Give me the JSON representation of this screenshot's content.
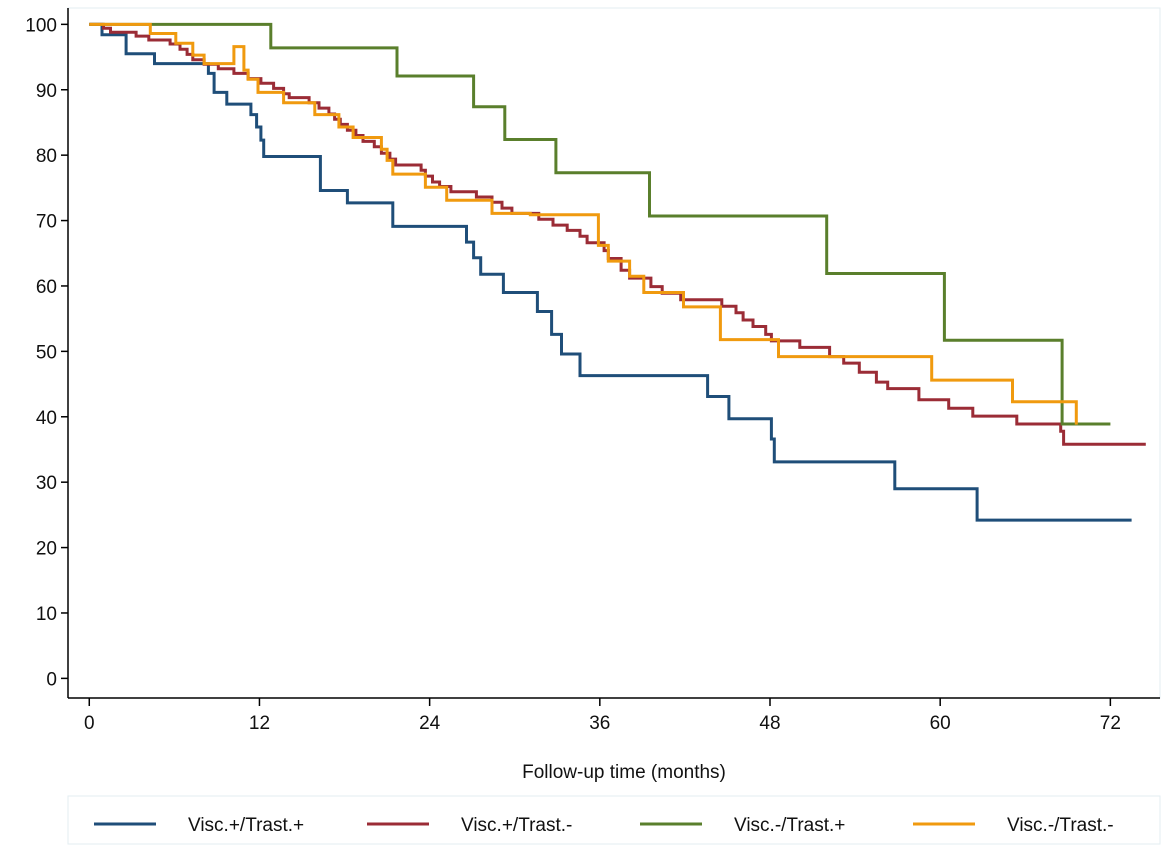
{
  "chart_data": {
    "type": "line",
    "step": true,
    "title": "",
    "xlabel": "Follow-up time (months)",
    "ylabel": "",
    "xlim": [
      -1.5,
      75.5
    ],
    "ylim": [
      -3,
      102.5
    ],
    "xticks": [
      0,
      12,
      24,
      36,
      48,
      60,
      72
    ],
    "xtick_labels": [
      "0",
      "12",
      "24",
      "36",
      "48",
      "60",
      "72"
    ],
    "yticks": [
      0,
      10,
      20,
      30,
      40,
      50,
      60,
      70,
      80,
      90,
      100
    ],
    "ytick_labels": [
      "0",
      "10",
      "20",
      "30",
      "40",
      "50",
      "60",
      "70",
      "80",
      "90",
      "100"
    ],
    "grid": false,
    "legend_position": "bottom",
    "series": [
      {
        "name": "Visc.+/Trast.+",
        "color": "#1f4e79",
        "points": [
          [
            0,
            100
          ],
          [
            0.9,
            100
          ],
          [
            0.9,
            98.4
          ],
          [
            2.6,
            98.4
          ],
          [
            2.6,
            95.5
          ],
          [
            4.6,
            95.5
          ],
          [
            4.6,
            94
          ],
          [
            8.4,
            94
          ],
          [
            8.4,
            92.5
          ],
          [
            8.8,
            92.5
          ],
          [
            8.8,
            89.6
          ],
          [
            9.7,
            89.6
          ],
          [
            9.7,
            87.8
          ],
          [
            11.4,
            87.8
          ],
          [
            11.4,
            86.2
          ],
          [
            11.8,
            86.2
          ],
          [
            11.8,
            84.3
          ],
          [
            12.1,
            84.3
          ],
          [
            12.1,
            82.3
          ],
          [
            12.3,
            82.3
          ],
          [
            12.3,
            79.8
          ],
          [
            16.3,
            79.8
          ],
          [
            16.3,
            74.6
          ],
          [
            18.2,
            74.6
          ],
          [
            18.2,
            72.7
          ],
          [
            21.4,
            72.7
          ],
          [
            21.4,
            69.1
          ],
          [
            26.6,
            69.1
          ],
          [
            26.6,
            66.7
          ],
          [
            27.1,
            66.7
          ],
          [
            27.1,
            64.3
          ],
          [
            27.6,
            64.3
          ],
          [
            27.6,
            61.8
          ],
          [
            29.2,
            61.8
          ],
          [
            29.2,
            59
          ],
          [
            31.6,
            59
          ],
          [
            31.6,
            56.1
          ],
          [
            32.6,
            56.1
          ],
          [
            32.6,
            52.6
          ],
          [
            33.3,
            52.6
          ],
          [
            33.3,
            49.6
          ],
          [
            34.6,
            49.6
          ],
          [
            34.6,
            46.3
          ],
          [
            43.6,
            46.3
          ],
          [
            43.6,
            43.1
          ],
          [
            45.1,
            43.1
          ],
          [
            45.1,
            39.7
          ],
          [
            48.1,
            39.7
          ],
          [
            48.1,
            36.6
          ],
          [
            48.3,
            36.6
          ],
          [
            48.3,
            33.1
          ],
          [
            56.8,
            33.1
          ],
          [
            56.8,
            29
          ],
          [
            62.6,
            29
          ],
          [
            62.6,
            24.2
          ],
          [
            73.5,
            24.2
          ]
        ]
      },
      {
        "name": "Visc.+/Trast.-",
        "color": "#9b2c36",
        "points": [
          [
            0,
            100
          ],
          [
            1,
            100
          ],
          [
            1,
            99.4
          ],
          [
            1.5,
            99.4
          ],
          [
            1.5,
            98.8
          ],
          [
            3.3,
            98.8
          ],
          [
            3.3,
            98.2
          ],
          [
            4.2,
            98.2
          ],
          [
            4.2,
            97.6
          ],
          [
            5.7,
            97.6
          ],
          [
            5.7,
            97
          ],
          [
            6.4,
            97
          ],
          [
            6.4,
            96.2
          ],
          [
            6.9,
            96.2
          ],
          [
            6.9,
            95.4
          ],
          [
            7.3,
            95.4
          ],
          [
            7.3,
            94.6
          ],
          [
            8.1,
            94.6
          ],
          [
            8.1,
            93.9
          ],
          [
            9.1,
            93.9
          ],
          [
            9.1,
            93.2
          ],
          [
            10.2,
            93.2
          ],
          [
            10.2,
            92.5
          ],
          [
            11.2,
            92.5
          ],
          [
            11.2,
            91.7
          ],
          [
            12.1,
            91.7
          ],
          [
            12.1,
            91
          ],
          [
            13,
            91
          ],
          [
            13,
            90.2
          ],
          [
            13.7,
            90.2
          ],
          [
            13.7,
            89.4
          ],
          [
            14.1,
            89.4
          ],
          [
            14.1,
            88.8
          ],
          [
            15.5,
            88.8
          ],
          [
            15.5,
            88
          ],
          [
            16.2,
            88
          ],
          [
            16.2,
            87.2
          ],
          [
            16.9,
            87.2
          ],
          [
            16.9,
            86.3
          ],
          [
            17.3,
            86.3
          ],
          [
            17.3,
            85.5
          ],
          [
            17.7,
            85.5
          ],
          [
            17.7,
            84.7
          ],
          [
            18.2,
            84.7
          ],
          [
            18.2,
            83.8
          ],
          [
            18.8,
            83.8
          ],
          [
            18.8,
            83
          ],
          [
            19.3,
            83
          ],
          [
            19.3,
            82.1
          ],
          [
            20.1,
            82.1
          ],
          [
            20.1,
            81.3
          ],
          [
            20.6,
            81.3
          ],
          [
            20.6,
            80.3
          ],
          [
            21.2,
            80.3
          ],
          [
            21.2,
            79.4
          ],
          [
            21.6,
            79.4
          ],
          [
            21.6,
            78.5
          ],
          [
            23.4,
            78.5
          ],
          [
            23.4,
            77.7
          ],
          [
            23.7,
            77.7
          ],
          [
            23.7,
            76.8
          ],
          [
            24.2,
            76.8
          ],
          [
            24.2,
            75.9
          ],
          [
            24.7,
            75.9
          ],
          [
            24.7,
            75.2
          ],
          [
            25.5,
            75.2
          ],
          [
            25.5,
            74.4
          ],
          [
            27.3,
            74.4
          ],
          [
            27.3,
            73.6
          ],
          [
            28.4,
            73.6
          ],
          [
            28.4,
            72.8
          ],
          [
            29.1,
            72.8
          ],
          [
            29.1,
            71.9
          ],
          [
            29.8,
            71.9
          ],
          [
            29.8,
            71.1
          ],
          [
            31.7,
            71.1
          ],
          [
            31.7,
            70.2
          ],
          [
            32.7,
            70.2
          ],
          [
            32.7,
            69.3
          ],
          [
            33.7,
            69.3
          ],
          [
            33.7,
            68.5
          ],
          [
            34.6,
            68.5
          ],
          [
            34.6,
            67.6
          ],
          [
            35.1,
            67.6
          ],
          [
            35.1,
            66.6
          ],
          [
            36.3,
            66.6
          ],
          [
            36.3,
            65.4
          ],
          [
            36.6,
            65.4
          ],
          [
            36.6,
            64.2
          ],
          [
            37.5,
            64.2
          ],
          [
            37.5,
            62.4
          ],
          [
            38.1,
            62.4
          ],
          [
            38.1,
            61.2
          ],
          [
            39.6,
            61.2
          ],
          [
            39.6,
            59.9
          ],
          [
            40.4,
            59.9
          ],
          [
            40.4,
            58.9
          ],
          [
            41.7,
            58.9
          ],
          [
            41.7,
            57.9
          ],
          [
            44.6,
            57.9
          ],
          [
            44.6,
            56.9
          ],
          [
            45.6,
            56.9
          ],
          [
            45.6,
            55.9
          ],
          [
            46.1,
            55.9
          ],
          [
            46.1,
            54.8
          ],
          [
            46.8,
            54.8
          ],
          [
            46.8,
            53.8
          ],
          [
            47.7,
            53.8
          ],
          [
            47.7,
            52.6
          ],
          [
            48.1,
            52.6
          ],
          [
            48.1,
            51.6
          ],
          [
            50.1,
            51.6
          ],
          [
            50.1,
            50.6
          ],
          [
            52.2,
            50.6
          ],
          [
            52.2,
            49.2
          ],
          [
            53.2,
            49.2
          ],
          [
            53.2,
            48.2
          ],
          [
            54.3,
            48.2
          ],
          [
            54.3,
            46.8
          ],
          [
            55.5,
            46.8
          ],
          [
            55.5,
            45.3
          ],
          [
            56.3,
            45.3
          ],
          [
            56.3,
            44.3
          ],
          [
            58.5,
            44.3
          ],
          [
            58.5,
            42.6
          ],
          [
            60.6,
            42.6
          ],
          [
            60.6,
            41.3
          ],
          [
            62.3,
            41.3
          ],
          [
            62.3,
            40.1
          ],
          [
            65.4,
            40.1
          ],
          [
            65.4,
            38.9
          ],
          [
            68.5,
            38.9
          ],
          [
            68.5,
            37.8
          ],
          [
            68.7,
            37.8
          ],
          [
            68.7,
            35.8
          ],
          [
            74.5,
            35.8
          ]
        ]
      },
      {
        "name": "Visc.-/Trast.+",
        "color": "#5a7f2c",
        "points": [
          [
            0,
            100
          ],
          [
            12.8,
            100
          ],
          [
            12.8,
            96.4
          ],
          [
            21.7,
            96.4
          ],
          [
            21.7,
            92.1
          ],
          [
            27.1,
            92.1
          ],
          [
            27.1,
            87.4
          ],
          [
            29.3,
            87.4
          ],
          [
            29.3,
            82.4
          ],
          [
            32.9,
            82.4
          ],
          [
            32.9,
            77.3
          ],
          [
            39.5,
            77.3
          ],
          [
            39.5,
            70.7
          ],
          [
            52,
            70.7
          ],
          [
            52,
            61.9
          ],
          [
            60.3,
            61.9
          ],
          [
            60.3,
            51.7
          ],
          [
            68.6,
            51.7
          ],
          [
            68.6,
            38.9
          ],
          [
            72,
            38.9
          ]
        ]
      },
      {
        "name": "Visc.-/Trast.-",
        "color": "#f09a0f",
        "points": [
          [
            0,
            100
          ],
          [
            4.3,
            100
          ],
          [
            4.3,
            98.6
          ],
          [
            6.1,
            98.6
          ],
          [
            6.1,
            97.1
          ],
          [
            7.3,
            97.1
          ],
          [
            7.3,
            95.3
          ],
          [
            8.1,
            95.3
          ],
          [
            8.1,
            94
          ],
          [
            10.2,
            94
          ],
          [
            10.2,
            96.6
          ],
          [
            10.9,
            96.6
          ],
          [
            10.9,
            93
          ],
          [
            11.2,
            93
          ],
          [
            11.2,
            91.6
          ],
          [
            11.9,
            91.6
          ],
          [
            11.9,
            89.6
          ],
          [
            13.7,
            89.6
          ],
          [
            13.7,
            88
          ],
          [
            15.9,
            88
          ],
          [
            15.9,
            86.2
          ],
          [
            17.6,
            86.2
          ],
          [
            17.6,
            84.3
          ],
          [
            18.6,
            84.3
          ],
          [
            18.6,
            82.7
          ],
          [
            20.6,
            82.7
          ],
          [
            20.6,
            80.9
          ],
          [
            21,
            80.9
          ],
          [
            21,
            79.2
          ],
          [
            21.4,
            79.2
          ],
          [
            21.4,
            77.1
          ],
          [
            23.7,
            77.1
          ],
          [
            23.7,
            75.1
          ],
          [
            25.2,
            75.1
          ],
          [
            25.2,
            73.1
          ],
          [
            28.4,
            73.1
          ],
          [
            28.4,
            71.1
          ],
          [
            31.1,
            71.1
          ],
          [
            31.1,
            70.9
          ],
          [
            35.9,
            70.9
          ],
          [
            35.9,
            66.2
          ],
          [
            36.6,
            66.2
          ],
          [
            36.6,
            63.8
          ],
          [
            38.1,
            63.8
          ],
          [
            38.1,
            61.5
          ],
          [
            39.1,
            61.5
          ],
          [
            39.1,
            59
          ],
          [
            41.9,
            59
          ],
          [
            41.9,
            56.8
          ],
          [
            44.5,
            56.8
          ],
          [
            44.5,
            51.8
          ],
          [
            48.6,
            51.8
          ],
          [
            48.6,
            49.2
          ],
          [
            59.4,
            49.2
          ],
          [
            59.4,
            45.6
          ],
          [
            65.1,
            45.6
          ],
          [
            65.1,
            42.3
          ],
          [
            69.6,
            42.3
          ],
          [
            69.6,
            38.8
          ]
        ]
      }
    ]
  }
}
